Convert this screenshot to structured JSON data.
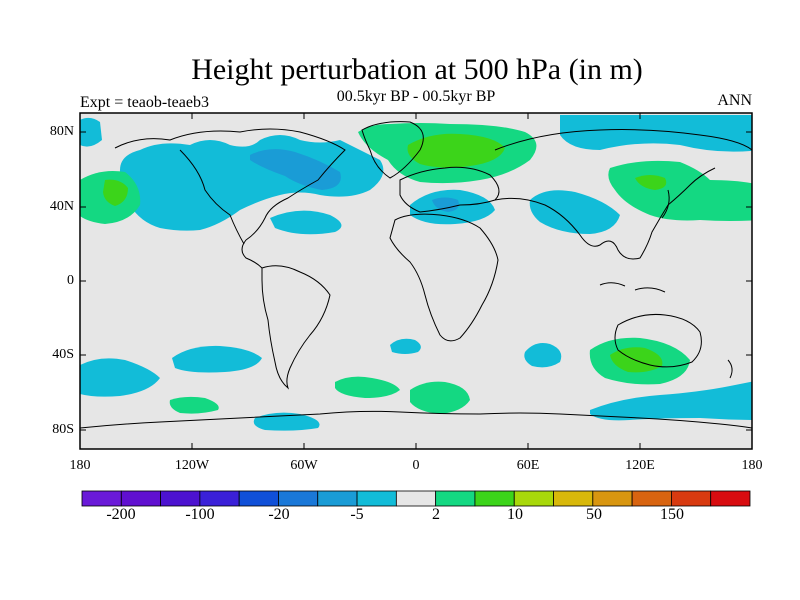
{
  "title": "Height perturbation at 500 hPa (in m)",
  "subtitle": "00.5kyr BP - 00.5kyr BP",
  "left_label": "Expt = teaob-teaeb3",
  "right_label": "ANN",
  "y_ticks": [
    "80N",
    "40N",
    "0",
    "40S",
    "80S"
  ],
  "x_ticks": [
    "180",
    "120W",
    "60W",
    "0",
    "60E",
    "120E",
    "180"
  ],
  "colorbar": {
    "colors": [
      "#6a1ad8",
      "#6010d0",
      "#4c12d0",
      "#3a20d8",
      "#1050d8",
      "#1a78d8",
      "#1a9cd6",
      "#12bcd8",
      "#e6e6e6",
      "#14d882",
      "#3cd41a",
      "#a8d80a",
      "#d8b80a",
      "#d89610",
      "#d86410",
      "#d83a10",
      "#d80c10"
    ],
    "labels": [
      "-200",
      "-100",
      "-20",
      "-5",
      "2",
      "10",
      "50",
      "150"
    ]
  },
  "map": {
    "background": "#e6e6e6",
    "neg_color": "#12bcd8",
    "neg2_color": "#1a9cd6",
    "pos_color": "#14d882",
    "pos2_color": "#3cd41a",
    "coast_color": "#000000"
  }
}
